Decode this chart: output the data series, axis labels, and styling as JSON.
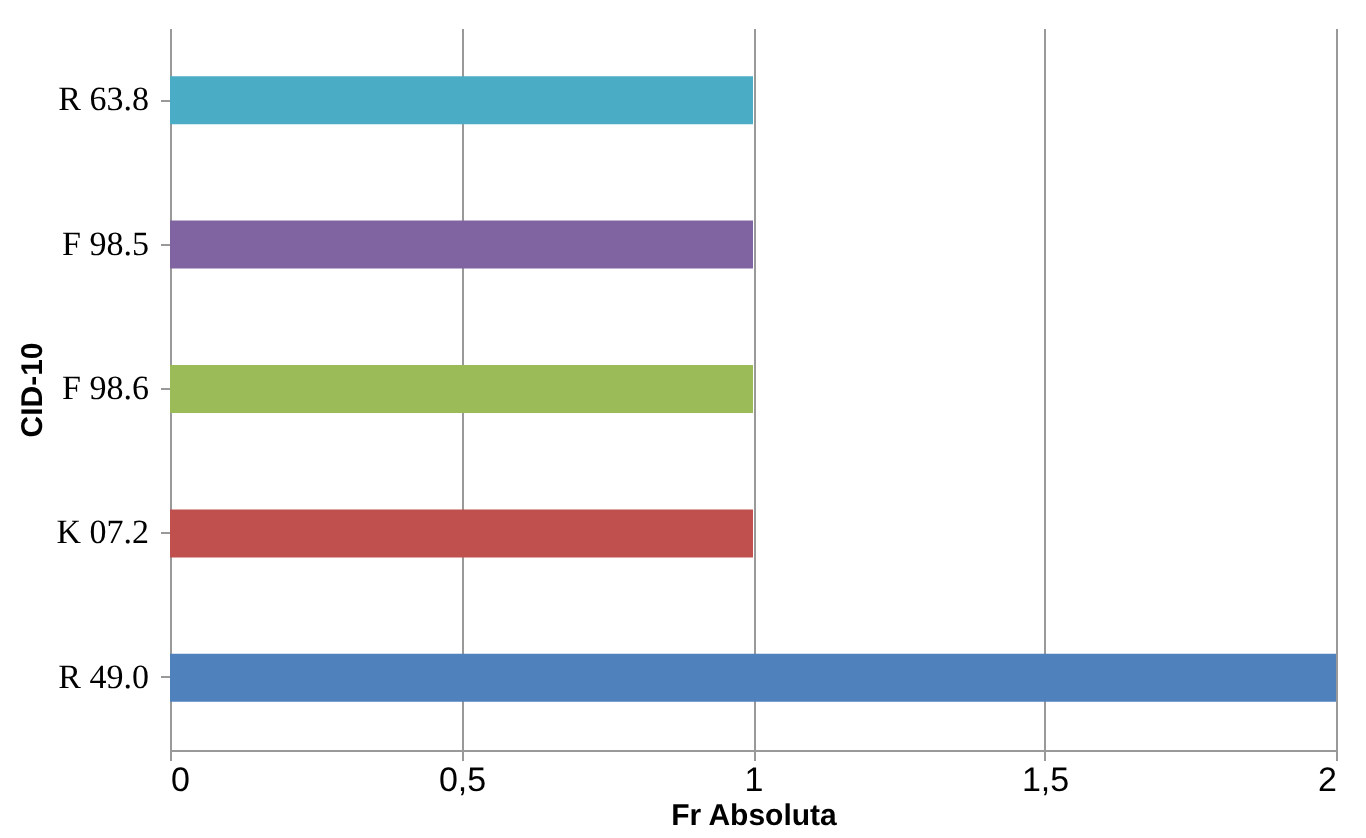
{
  "chart_data": {
    "type": "bar",
    "orientation": "horizontal",
    "xlabel": "Fr Absoluta",
    "ylabel": "CID-10",
    "categories": [
      "R 63.8",
      "F 98.5",
      "F 98.6",
      "K 07.2",
      "R 49.0"
    ],
    "values": [
      1,
      1,
      1,
      1,
      2
    ],
    "colors": [
      "#4bacc6",
      "#8064a2",
      "#9bbb59",
      "#c0504d",
      "#4f81bd"
    ],
    "xlim": [
      0,
      2
    ],
    "xticks": [
      0,
      {
        "value": 0.5,
        "label": "0,5"
      },
      1,
      {
        "value": 1.5,
        "label": "1,5"
      },
      2
    ],
    "grid": "x"
  }
}
